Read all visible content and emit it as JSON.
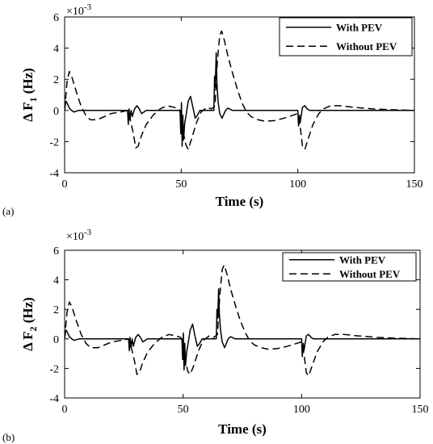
{
  "chart_data": [
    {
      "type": "line",
      "panel_label": "(a)",
      "xlabel": "Time (s)",
      "ylabel_main": "Δ F",
      "ylabel_sub": "1",
      "ylabel_unit": "(Hz)",
      "y_multiplier": "×10",
      "y_exponent": "-3",
      "xlim": [
        0,
        150
      ],
      "ylim": [
        -4,
        6
      ],
      "xticks": [
        0,
        50,
        100,
        150
      ],
      "yticks": [
        -4,
        -2,
        0,
        2,
        4,
        6
      ],
      "grid": false,
      "legend_position": "top-right",
      "series": [
        {
          "name": "With PEV",
          "style": "solid",
          "points": [
            [
              0,
              0
            ],
            [
              0.5,
              0.6
            ],
            [
              1,
              0.5
            ],
            [
              2,
              0.15
            ],
            [
              3,
              0
            ],
            [
              4,
              -0.1
            ],
            [
              5,
              -0.05
            ],
            [
              6,
              0
            ],
            [
              27,
              0
            ],
            [
              27.3,
              -0.9
            ],
            [
              27.6,
              0.1
            ],
            [
              28,
              -0.6
            ],
            [
              28.5,
              0
            ],
            [
              29,
              -0.4
            ],
            [
              30,
              0.1
            ],
            [
              31,
              0.3
            ],
            [
              32,
              0.1
            ],
            [
              33,
              -0.2
            ],
            [
              34,
              -0.1
            ],
            [
              35,
              0
            ],
            [
              49.5,
              0
            ],
            [
              49.8,
              -1.5
            ],
            [
              50.1,
              0.5
            ],
            [
              50.4,
              -2.3
            ],
            [
              50.7,
              -0.3
            ],
            [
              51,
              -1.9
            ],
            [
              51.5,
              -0.8
            ],
            [
              52,
              -0.4
            ],
            [
              53,
              0.6
            ],
            [
              54,
              0.9
            ],
            [
              55,
              0.2
            ],
            [
              56,
              -0.5
            ],
            [
              57,
              -0.3
            ],
            [
              58,
              0
            ],
            [
              64,
              0
            ],
            [
              64.3,
              2.2
            ],
            [
              64.6,
              1.5
            ],
            [
              65,
              3.7
            ],
            [
              65.3,
              1.8
            ],
            [
              65.8,
              0.6
            ],
            [
              66.5,
              -0.2
            ],
            [
              67.5,
              -0.5
            ],
            [
              69,
              0
            ],
            [
              70,
              0.15
            ],
            [
              72,
              0
            ],
            [
              100,
              0
            ],
            [
              100.3,
              -1.0
            ],
            [
              100.7,
              -0.3
            ],
            [
              101,
              -0.8
            ],
            [
              102,
              0.2
            ],
            [
              103,
              0.3
            ],
            [
              104,
              0.1
            ],
            [
              105,
              0
            ],
            [
              150,
              0
            ]
          ]
        },
        {
          "name": "Without PEV",
          "style": "dashed",
          "points": [
            [
              0,
              0
            ],
            [
              1,
              1.8
            ],
            [
              2,
              2.5
            ],
            [
              3,
              2.2
            ],
            [
              5,
              1.2
            ],
            [
              7,
              0.3
            ],
            [
              9,
              -0.3
            ],
            [
              11,
              -0.6
            ],
            [
              14,
              -0.6
            ],
            [
              17,
              -0.4
            ],
            [
              20,
              -0.2
            ],
            [
              24,
              -0.1
            ],
            [
              27,
              0
            ],
            [
              28,
              -0.5
            ],
            [
              29.5,
              -1.5
            ],
            [
              30.5,
              -2.4
            ],
            [
              31.5,
              -2.3
            ],
            [
              33,
              -1.6
            ],
            [
              35,
              -0.9
            ],
            [
              38,
              -0.3
            ],
            [
              41,
              0.1
            ],
            [
              44,
              0.3
            ],
            [
              47,
              0.2
            ],
            [
              49,
              0.1
            ],
            [
              50,
              -0.3
            ],
            [
              51,
              -1.5
            ],
            [
              52,
              -2.2
            ],
            [
              53,
              -2.5
            ],
            [
              54.5,
              -1.8
            ],
            [
              56.5,
              -0.8
            ],
            [
              58.5,
              -0.1
            ],
            [
              61,
              0.2
            ],
            [
              63,
              0.1
            ],
            [
              64.5,
              0.3
            ],
            [
              65.5,
              3.2
            ],
            [
              66.5,
              4.8
            ],
            [
              67.3,
              5.1
            ],
            [
              68.5,
              4.5
            ],
            [
              70,
              3.5
            ],
            [
              72,
              2.4
            ],
            [
              74,
              1.4
            ],
            [
              76,
              0.5
            ],
            [
              78,
              -0.1
            ],
            [
              80,
              -0.4
            ],
            [
              83,
              -0.6
            ],
            [
              86,
              -0.7
            ],
            [
              90,
              -0.65
            ],
            [
              94,
              -0.5
            ],
            [
              98,
              -0.3
            ],
            [
              100,
              -0.2
            ],
            [
              101,
              -1.0
            ],
            [
              102,
              -2.3
            ],
            [
              103,
              -2.5
            ],
            [
              104.5,
              -1.8
            ],
            [
              106.5,
              -0.9
            ],
            [
              109,
              -0.2
            ],
            [
              111,
              0.1
            ],
            [
              114,
              0.3
            ],
            [
              118,
              0.3
            ],
            [
              124,
              0.2
            ],
            [
              132,
              0.1
            ],
            [
              140,
              0.05
            ],
            [
              150,
              0
            ]
          ]
        }
      ]
    },
    {
      "type": "line",
      "panel_label": "(b)",
      "xlabel": "Time (s)",
      "ylabel_main": "Δ F",
      "ylabel_sub": "2",
      "ylabel_unit": "(Hz)",
      "y_multiplier": "×10",
      "y_exponent": "-3",
      "xlim": [
        0,
        150
      ],
      "ylim": [
        -4,
        6
      ],
      "xticks": [
        0,
        50,
        100,
        150
      ],
      "yticks": [
        -4,
        -2,
        0,
        2,
        4,
        6
      ],
      "grid": false,
      "legend_position": "top-right",
      "series": [
        {
          "name": "With PEV",
          "style": "solid",
          "points": [
            [
              0,
              0
            ],
            [
              0.5,
              0.6
            ],
            [
              1,
              0.5
            ],
            [
              2,
              0.15
            ],
            [
              3,
              0
            ],
            [
              4,
              -0.1
            ],
            [
              5,
              -0.05
            ],
            [
              6,
              0
            ],
            [
              27,
              0
            ],
            [
              27.3,
              -0.8
            ],
            [
              27.6,
              0.1
            ],
            [
              28,
              -0.6
            ],
            [
              28.5,
              0
            ],
            [
              29,
              -0.5
            ],
            [
              30,
              0.1
            ],
            [
              31,
              0.3
            ],
            [
              32,
              0.1
            ],
            [
              33,
              -0.2
            ],
            [
              34,
              -0.1
            ],
            [
              35,
              0
            ],
            [
              49.5,
              0
            ],
            [
              49.8,
              -1.4
            ],
            [
              50.1,
              0.4
            ],
            [
              50.4,
              -2.1
            ],
            [
              50.7,
              -0.3
            ],
            [
              51,
              -1.8
            ],
            [
              51.5,
              -0.9
            ],
            [
              52,
              -0.4
            ],
            [
              53,
              0.6
            ],
            [
              54,
              1.0
            ],
            [
              55,
              0.2
            ],
            [
              56,
              -0.5
            ],
            [
              57,
              -0.3
            ],
            [
              58,
              0
            ],
            [
              64,
              0
            ],
            [
              64.3,
              2.0
            ],
            [
              64.6,
              1.4
            ],
            [
              65,
              3.4
            ],
            [
              65.3,
              1.7
            ],
            [
              65.8,
              0.6
            ],
            [
              66.5,
              -0.2
            ],
            [
              67.5,
              -0.6
            ],
            [
              69,
              0
            ],
            [
              70,
              0.15
            ],
            [
              72,
              0
            ],
            [
              100,
              0
            ],
            [
              100.3,
              -1.2
            ],
            [
              100.7,
              -0.3
            ],
            [
              101,
              -0.8
            ],
            [
              102,
              0.2
            ],
            [
              103,
              0.3
            ],
            [
              104,
              0.1
            ],
            [
              105,
              0
            ],
            [
              150,
              0
            ]
          ]
        },
        {
          "name": "Without PEV",
          "style": "dashed",
          "points": [
            [
              0,
              0
            ],
            [
              1,
              1.8
            ],
            [
              2,
              2.5
            ],
            [
              3,
              2.2
            ],
            [
              5,
              1.2
            ],
            [
              7,
              0.3
            ],
            [
              9,
              -0.3
            ],
            [
              11,
              -0.6
            ],
            [
              14,
              -0.6
            ],
            [
              17,
              -0.4
            ],
            [
              20,
              -0.2
            ],
            [
              24,
              -0.1
            ],
            [
              27,
              0
            ],
            [
              28,
              -0.5
            ],
            [
              29.5,
              -1.5
            ],
            [
              30.5,
              -2.4
            ],
            [
              31.5,
              -2.3
            ],
            [
              33,
              -1.6
            ],
            [
              35,
              -0.9
            ],
            [
              38,
              -0.3
            ],
            [
              41,
              0.1
            ],
            [
              44,
              0.3
            ],
            [
              47,
              0.2
            ],
            [
              49,
              0.1
            ],
            [
              50,
              -0.3
            ],
            [
              51,
              -1.5
            ],
            [
              52,
              -2.2
            ],
            [
              53,
              -2.4
            ],
            [
              54.5,
              -1.8
            ],
            [
              56.5,
              -0.8
            ],
            [
              58.5,
              -0.1
            ],
            [
              61,
              0.2
            ],
            [
              63,
              0.1
            ],
            [
              64.5,
              0.3
            ],
            [
              65.5,
              3.0
            ],
            [
              66.5,
              4.7
            ],
            [
              67.3,
              5.0
            ],
            [
              68.5,
              4.4
            ],
            [
              70,
              3.4
            ],
            [
              72,
              2.3
            ],
            [
              74,
              1.3
            ],
            [
              76,
              0.5
            ],
            [
              78,
              -0.1
            ],
            [
              80,
              -0.4
            ],
            [
              83,
              -0.6
            ],
            [
              86,
              -0.7
            ],
            [
              90,
              -0.65
            ],
            [
              94,
              -0.5
            ],
            [
              98,
              -0.3
            ],
            [
              100,
              -0.2
            ],
            [
              101,
              -1.0
            ],
            [
              102,
              -2.3
            ],
            [
              103,
              -2.5
            ],
            [
              104.5,
              -1.8
            ],
            [
              106.5,
              -0.9
            ],
            [
              109,
              -0.2
            ],
            [
              111,
              0.1
            ],
            [
              114,
              0.3
            ],
            [
              118,
              0.3
            ],
            [
              124,
              0.2
            ],
            [
              132,
              0.1
            ],
            [
              140,
              0.05
            ],
            [
              150,
              0
            ]
          ]
        }
      ]
    }
  ]
}
